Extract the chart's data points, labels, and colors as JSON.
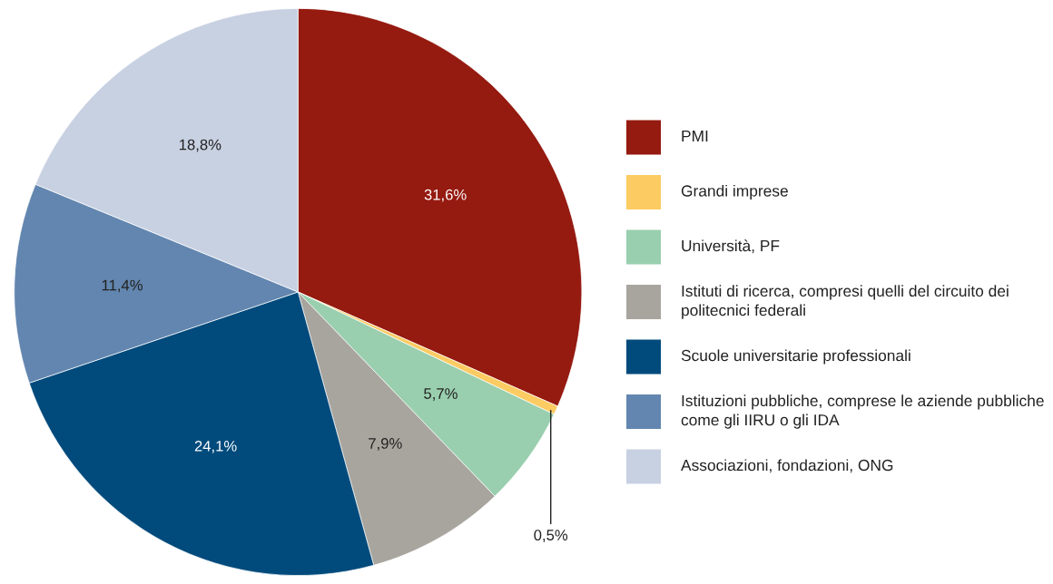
{
  "chart_data": {
    "type": "pie",
    "categories": [
      "PMI",
      "Grandi imprese",
      "Università, PF",
      "Istituti di ricerca, compresi quelli del circuito dei politecnici federali",
      "Scuole universitarie professionali",
      "Istituzioni pubbliche, comprese le aziende pubbliche come gli IIRU o gli IDA",
      "Associazioni, fondazioni, ONG"
    ],
    "values": [
      31.6,
      0.5,
      5.7,
      7.9,
      24.1,
      11.4,
      18.8
    ],
    "colors": [
      "#951a10",
      "#fccb62",
      "#99cfae",
      "#a8a59e",
      "#004a7c",
      "#6286af",
      "#c8d1e2"
    ],
    "value_labels": [
      "31,6%",
      "0,5%",
      "5,7%",
      "7,9%",
      "24,1%",
      "11,4%",
      "18,8%"
    ],
    "legend": "right"
  }
}
